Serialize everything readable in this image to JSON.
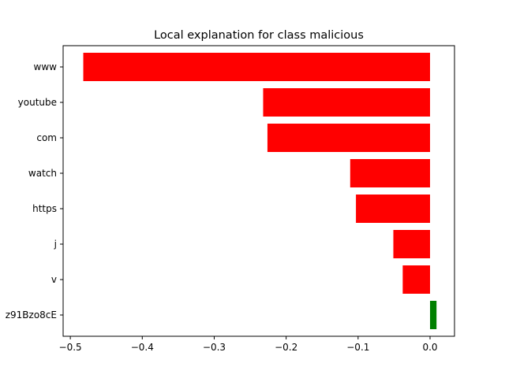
{
  "chart_data": {
    "type": "bar",
    "orientation": "horizontal",
    "title": "Local explanation for class malicious",
    "xlabel": "",
    "ylabel": "",
    "categories": [
      "www",
      "youtube",
      "com",
      "watch",
      "https",
      "j",
      "v",
      "z91Bzo8cE"
    ],
    "values": [
      -0.482,
      -0.232,
      -0.226,
      -0.111,
      -0.103,
      -0.051,
      -0.038,
      0.009
    ],
    "xlim": [
      -0.51,
      0.034
    ],
    "xticks": [
      -0.5,
      -0.4,
      -0.3,
      -0.2,
      -0.1,
      0.0
    ],
    "xtick_labels": [
      "−0.5",
      "−0.4",
      "−0.3",
      "−0.2",
      "−0.1",
      "0.0"
    ],
    "colors": {
      "negative": "#ff0000",
      "positive": "#008000"
    },
    "grid": false,
    "legend": "none"
  }
}
